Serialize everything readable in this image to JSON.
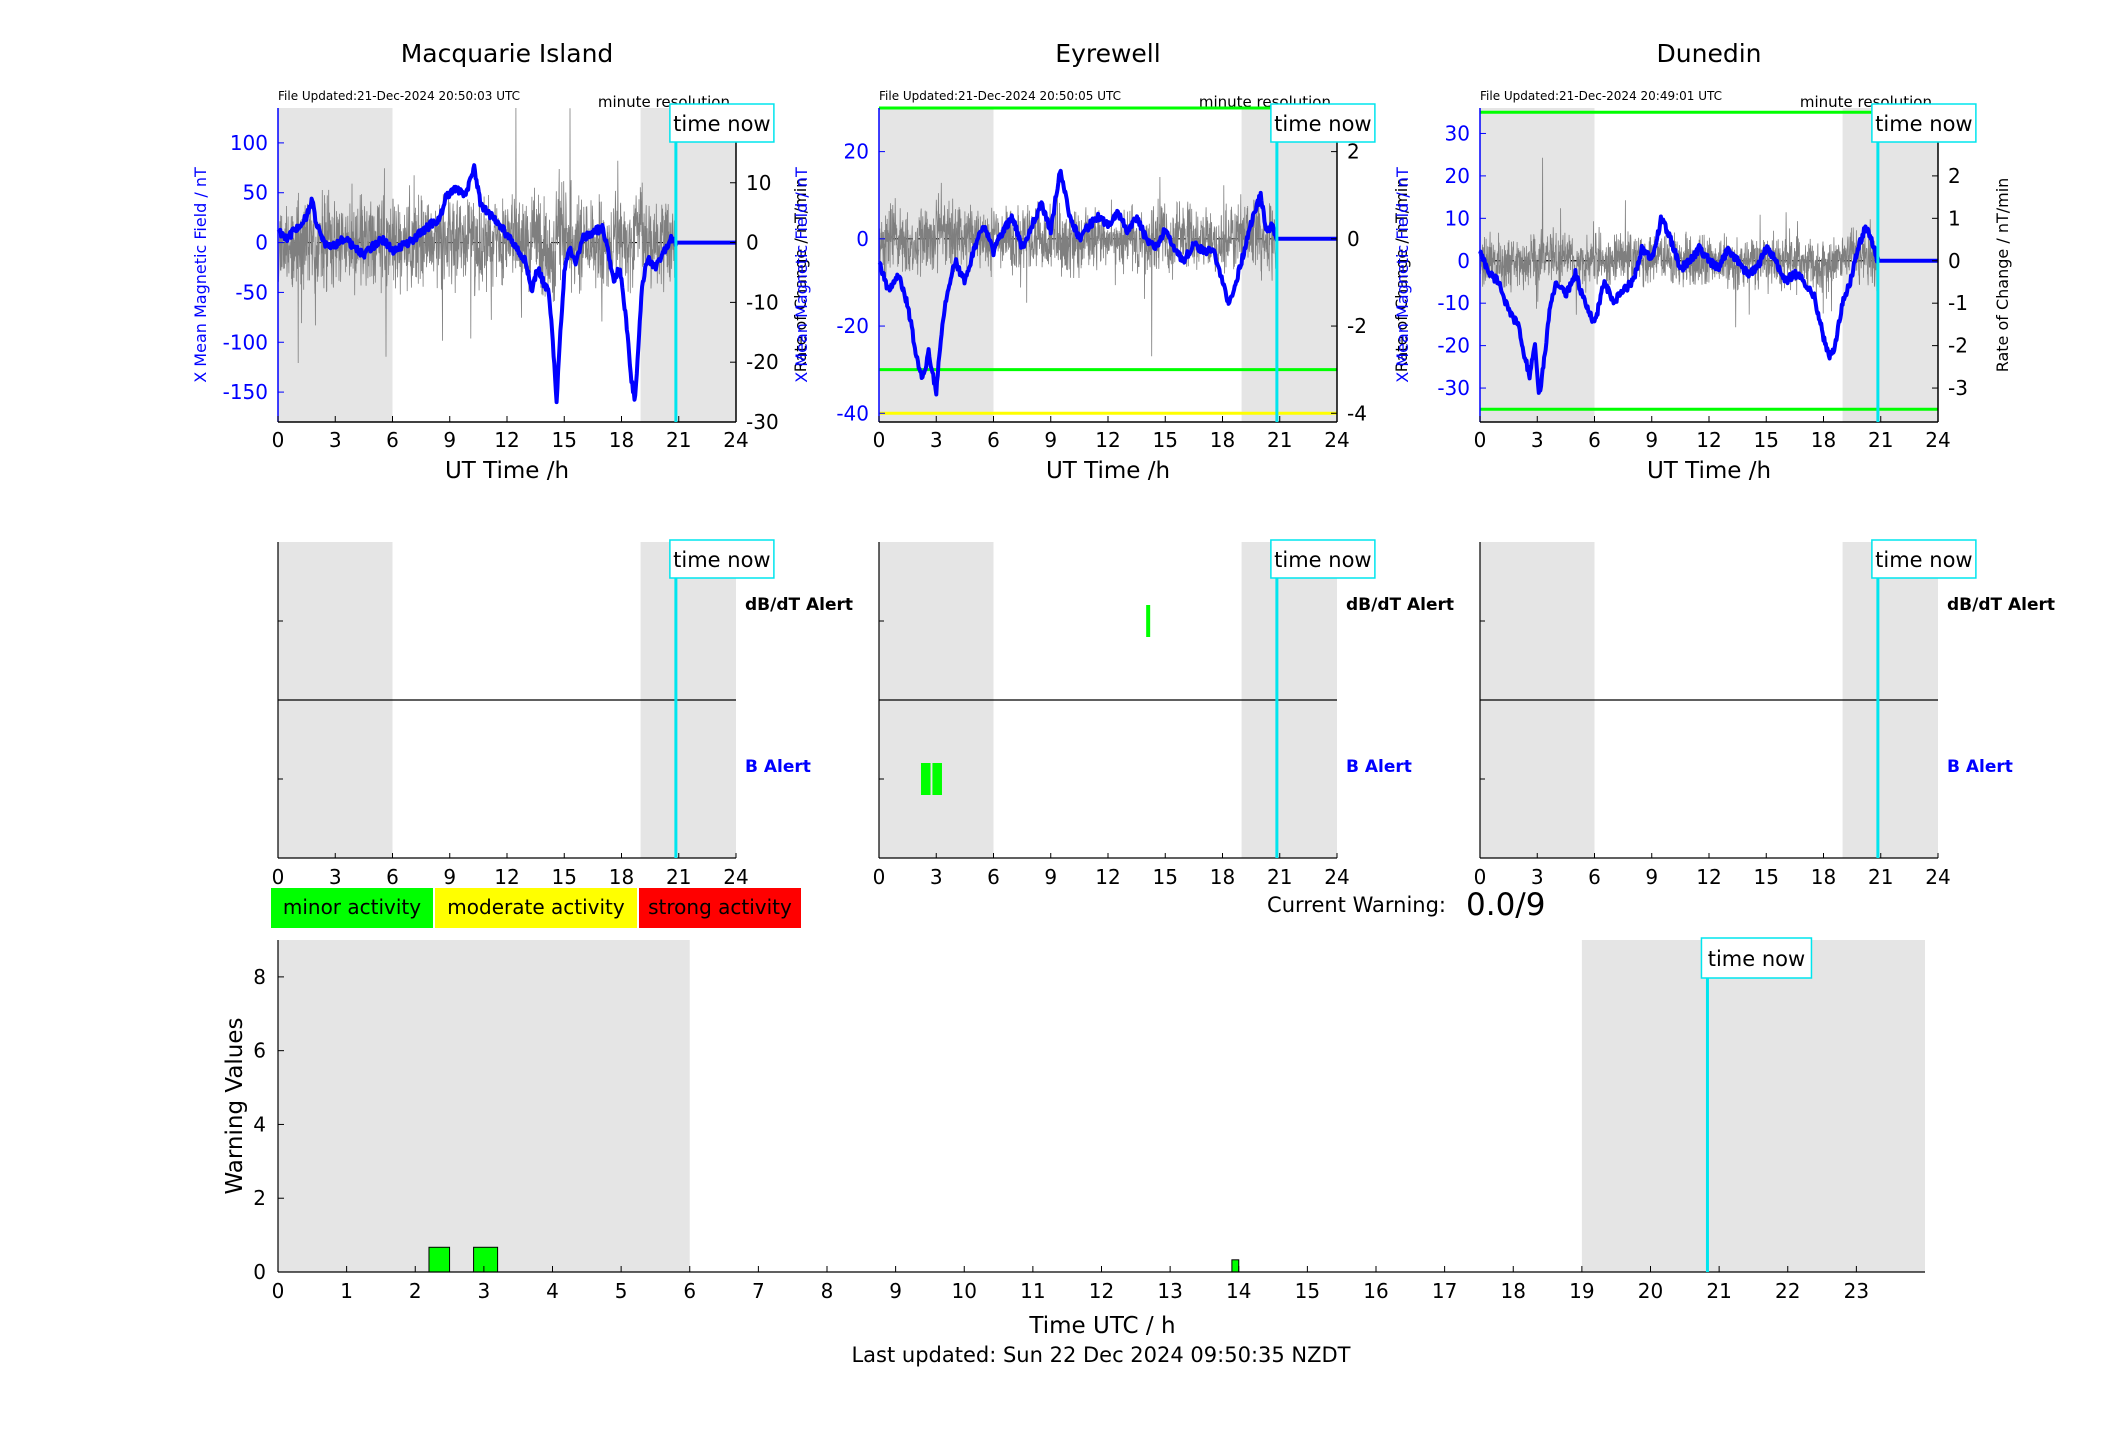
{
  "colors": {
    "night_shade": "#e5e5e5",
    "field_line": "#0000ff",
    "rate_line": "#7f7f7f",
    "time_now_line": "#00e5ee",
    "minor": "#00ff00",
    "moderate": "#ffff00",
    "strong": "#ff0000",
    "b_alert_label": "#0000ff"
  },
  "stations": [
    {
      "id": "macquarie",
      "title": "Macquarie Island",
      "file_updated": "File Updated:21-Dec-2024 20:50:03 UTC",
      "resolution": "minute resolution",
      "time_now_label": "time now",
      "ylabel_left": "X Mean Magnetic Field / nT",
      "ylabel_right": "Rate of Change / nT/min",
      "xlabel": "UT Time /h",
      "xticks": [
        "0",
        "3",
        "6",
        "9",
        "12",
        "15",
        "18",
        "21",
        "24"
      ],
      "ylim_left": [
        -180,
        135
      ],
      "yticks_left": [
        "100",
        "50",
        "0",
        "-50",
        "-100",
        "-150"
      ],
      "ylim_right": [
        -30,
        22.5
      ],
      "yticks_right": [
        "20",
        "10",
        "0",
        "-10",
        "-20",
        "-30"
      ],
      "night_bands": [
        [
          0,
          6
        ],
        [
          19,
          24
        ]
      ],
      "time_now": 20.85,
      "threshold_lines": [],
      "field_points": [
        [
          0,
          12
        ],
        [
          0.5,
          5
        ],
        [
          1,
          15
        ],
        [
          1.5,
          25
        ],
        [
          1.8,
          45
        ],
        [
          2,
          18
        ],
        [
          2.3,
          5
        ],
        [
          2.6,
          -5
        ],
        [
          3,
          -2
        ],
        [
          3.5,
          5
        ],
        [
          4,
          -5
        ],
        [
          4.5,
          -12
        ],
        [
          5,
          -3
        ],
        [
          5.5,
          3
        ],
        [
          6,
          -8
        ],
        [
          6.5,
          -3
        ],
        [
          7,
          2
        ],
        [
          7.5,
          10
        ],
        [
          8,
          18
        ],
        [
          8.5,
          25
        ],
        [
          8.8,
          45
        ],
        [
          9.3,
          55
        ],
        [
          9.8,
          48
        ],
        [
          10.3,
          75
        ],
        [
          10.6,
          40
        ],
        [
          11,
          30
        ],
        [
          11.5,
          20
        ],
        [
          12,
          8
        ],
        [
          12.5,
          -5
        ],
        [
          13,
          -20
        ],
        [
          13.3,
          -50
        ],
        [
          13.6,
          -25
        ],
        [
          13.9,
          -40
        ],
        [
          14.2,
          -50
        ],
        [
          14.4,
          -100
        ],
        [
          14.6,
          -158
        ],
        [
          14.8,
          -90
        ],
        [
          15,
          -30
        ],
        [
          15.3,
          -5
        ],
        [
          15.6,
          -20
        ],
        [
          16,
          5
        ],
        [
          16.5,
          10
        ],
        [
          17,
          15
        ],
        [
          17.3,
          -10
        ],
        [
          17.6,
          -40
        ],
        [
          17.9,
          -25
        ],
        [
          18.2,
          -70
        ],
        [
          18.5,
          -135
        ],
        [
          18.7,
          -160
        ],
        [
          18.9,
          -100
        ],
        [
          19.1,
          -40
        ],
        [
          19.4,
          -15
        ],
        [
          19.8,
          -25
        ],
        [
          20.2,
          -10
        ],
        [
          20.6,
          5
        ],
        [
          20.85,
          0
        ],
        [
          24,
          0
        ]
      ],
      "rate_seed": 11,
      "rate_amp": 6,
      "alert_bars": []
    },
    {
      "id": "eyrewell",
      "title": "Eyrewell",
      "file_updated": "File Updated:21-Dec-2024 20:50:05 UTC",
      "resolution": "minute resolution",
      "time_now_label": "time now",
      "ylabel_left": "X Mean Magnetic Field / nT",
      "ylabel_right": "Rate of Change / nT/min",
      "xlabel": "UT Time /h",
      "xticks": [
        "0",
        "3",
        "6",
        "9",
        "12",
        "15",
        "18",
        "21",
        "24"
      ],
      "ylim_left": [
        -42,
        30
      ],
      "yticks_left": [
        "20",
        "0",
        "-20",
        "-40"
      ],
      "ylim_right": [
        -4.2,
        3.0
      ],
      "yticks_right": [
        "2",
        "0",
        "-2",
        "-4"
      ],
      "night_bands": [
        [
          0,
          6
        ],
        [
          19,
          24
        ]
      ],
      "time_now": 20.85,
      "threshold_lines": [
        {
          "value": 30,
          "color": "#00ff00"
        },
        {
          "value": -30,
          "color": "#00ff00"
        },
        {
          "value": -40,
          "color": "#ffff00"
        }
      ],
      "field_points": [
        [
          0,
          -5
        ],
        [
          0.5,
          -12
        ],
        [
          1,
          -8
        ],
        [
          1.5,
          -15
        ],
        [
          2,
          -28
        ],
        [
          2.3,
          -32
        ],
        [
          2.6,
          -26
        ],
        [
          3,
          -35
        ],
        [
          3.3,
          -20
        ],
        [
          3.6,
          -12
        ],
        [
          4,
          -5
        ],
        [
          4.5,
          -10
        ],
        [
          5,
          -2
        ],
        [
          5.5,
          3
        ],
        [
          6,
          -3
        ],
        [
          6.5,
          2
        ],
        [
          7,
          5
        ],
        [
          7.5,
          -2
        ],
        [
          8,
          3
        ],
        [
          8.5,
          8
        ],
        [
          9,
          2
        ],
        [
          9.5,
          16
        ],
        [
          10,
          5
        ],
        [
          10.5,
          0
        ],
        [
          11,
          3
        ],
        [
          11.5,
          5
        ],
        [
          12,
          3
        ],
        [
          12.5,
          6
        ],
        [
          13,
          2
        ],
        [
          13.5,
          5
        ],
        [
          14,
          0
        ],
        [
          14.5,
          -2
        ],
        [
          15,
          2
        ],
        [
          15.5,
          -3
        ],
        [
          16,
          -5
        ],
        [
          16.5,
          -1
        ],
        [
          17,
          -3
        ],
        [
          17.5,
          -2
        ],
        [
          18,
          -10
        ],
        [
          18.3,
          -15
        ],
        [
          18.6,
          -12
        ],
        [
          19,
          -5
        ],
        [
          19.3,
          0
        ],
        [
          19.6,
          5
        ],
        [
          20,
          10
        ],
        [
          20.3,
          2
        ],
        [
          20.6,
          3
        ],
        [
          20.85,
          0
        ],
        [
          24,
          0
        ]
      ],
      "rate_seed": 23,
      "rate_amp": 0.6,
      "alert_bars": [
        {
          "level": "dbdt",
          "start": 14.0,
          "end": 14.2
        },
        {
          "level": "b",
          "start": 2.2,
          "end": 2.7
        },
        {
          "level": "b",
          "start": 2.8,
          "end": 3.3
        }
      ]
    },
    {
      "id": "dunedin",
      "title": "Dunedin",
      "file_updated": "File Updated:21-Dec-2024 20:49:01 UTC",
      "resolution": "minute resolution",
      "time_now_label": "time now",
      "ylabel_left": "X Mean Magnetic Field / nT",
      "ylabel_right": "Rate of Change / nT/min",
      "xlabel": "UT Time /h",
      "xticks": [
        "0",
        "3",
        "6",
        "9",
        "12",
        "15",
        "18",
        "21",
        "24"
      ],
      "ylim_left": [
        -38,
        36
      ],
      "yticks_left": [
        "30",
        "20",
        "10",
        "0",
        "-10",
        "-20",
        "-30"
      ],
      "ylim_right": [
        -3.8,
        3.6
      ],
      "yticks_right": [
        "3",
        "2",
        "1",
        "0",
        "-1",
        "-2",
        "-3"
      ],
      "night_bands": [
        [
          0,
          6
        ],
        [
          19,
          24
        ]
      ],
      "time_now": 20.85,
      "threshold_lines": [
        {
          "value": 35,
          "color": "#00ff00"
        },
        {
          "value": -35,
          "color": "#00ff00"
        }
      ],
      "field_points": [
        [
          0,
          2
        ],
        [
          0.5,
          -3
        ],
        [
          1,
          -5
        ],
        [
          1.5,
          -12
        ],
        [
          2,
          -15
        ],
        [
          2.3,
          -22
        ],
        [
          2.6,
          -27
        ],
        [
          2.9,
          -20
        ],
        [
          3.1,
          -32
        ],
        [
          3.4,
          -22
        ],
        [
          3.7,
          -10
        ],
        [
          4,
          -5
        ],
        [
          4.5,
          -8
        ],
        [
          5,
          -3
        ],
        [
          5.5,
          -10
        ],
        [
          6,
          -15
        ],
        [
          6.5,
          -5
        ],
        [
          7,
          -10
        ],
        [
          7.5,
          -7
        ],
        [
          8,
          -5
        ],
        [
          8.5,
          3
        ],
        [
          9,
          0
        ],
        [
          9.5,
          10
        ],
        [
          10,
          5
        ],
        [
          10.5,
          -2
        ],
        [
          11,
          0
        ],
        [
          11.5,
          3
        ],
        [
          12,
          0
        ],
        [
          12.5,
          -2
        ],
        [
          13,
          3
        ],
        [
          13.5,
          0
        ],
        [
          14,
          -3
        ],
        [
          14.5,
          -2
        ],
        [
          15,
          3
        ],
        [
          15.5,
          0
        ],
        [
          16,
          -5
        ],
        [
          16.5,
          -3
        ],
        [
          17,
          -5
        ],
        [
          17.5,
          -8
        ],
        [
          18,
          -18
        ],
        [
          18.3,
          -23
        ],
        [
          18.6,
          -20
        ],
        [
          19,
          -10
        ],
        [
          19.4,
          -5
        ],
        [
          19.8,
          3
        ],
        [
          20.2,
          8
        ],
        [
          20.5,
          5
        ],
        [
          20.85,
          0
        ],
        [
          24,
          0
        ]
      ],
      "rate_seed": 37,
      "rate_amp": 0.5,
      "alert_bars": []
    }
  ],
  "alert_labels": {
    "dbdt": "dB/dT Alert",
    "b": "B Alert"
  },
  "alert_xticks": [
    "0",
    "3",
    "6",
    "9",
    "12",
    "15",
    "18",
    "21",
    "24"
  ],
  "legend": [
    {
      "label": "minor activity",
      "color": "#00ff00"
    },
    {
      "label": "moderate activity",
      "color": "#ffff00"
    },
    {
      "label": "strong activity",
      "color": "#ff0000"
    }
  ],
  "current_warning": {
    "label": "Current Warning:",
    "value": "0.0/9"
  },
  "chart_data": {
    "type": "bar",
    "title": "",
    "xlabel": "Time UTC / h",
    "ylabel": "Warning Values",
    "xlim": [
      0,
      24
    ],
    "ylim": [
      0,
      9
    ],
    "xticks": [
      "0",
      "1",
      "2",
      "3",
      "4",
      "5",
      "6",
      "7",
      "8",
      "9",
      "10",
      "11",
      "12",
      "13",
      "14",
      "15",
      "16",
      "17",
      "18",
      "19",
      "20",
      "21",
      "22",
      "23"
    ],
    "yticks": [
      "0",
      "2",
      "4",
      "6",
      "8"
    ],
    "night_bands": [
      [
        0,
        6
      ],
      [
        19,
        24
      ]
    ],
    "time_now": 20.83,
    "time_now_label": "time now",
    "bars": [
      {
        "start": 2.2,
        "end": 2.5,
        "value": 0.67
      },
      {
        "start": 2.85,
        "end": 3.2,
        "value": 0.67
      },
      {
        "start": 13.9,
        "end": 14.0,
        "value": 0.33
      }
    ]
  },
  "footer": "Last updated: Sun 22 Dec 2024 09:50:35 NZDT"
}
